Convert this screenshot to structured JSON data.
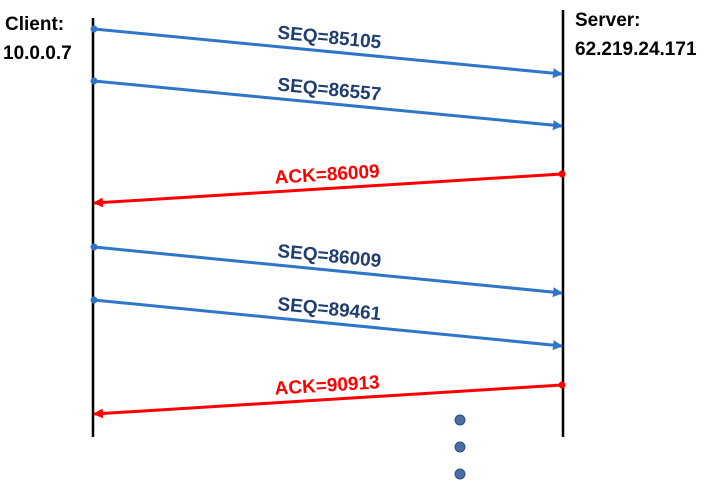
{
  "client": {
    "title": "Client:",
    "address": "10.0.0.7"
  },
  "server": {
    "title": "Server:",
    "address": "62.219.24.171"
  },
  "colors": {
    "data_segment": "#2F75C8",
    "data_label": "#1F3D6E",
    "ack": "#FF0000",
    "timeline": "#000000",
    "ellipsis_dot": "#4A6FA5"
  },
  "messages": [
    {
      "type": "seq",
      "direction": "client-to-server",
      "label": "SEQ=85105"
    },
    {
      "type": "seq",
      "direction": "client-to-server",
      "label": "SEQ=86557"
    },
    {
      "type": "ack",
      "direction": "server-to-client",
      "label": "ACK=86009"
    },
    {
      "type": "seq",
      "direction": "client-to-server",
      "label": "SEQ=86009"
    },
    {
      "type": "seq",
      "direction": "client-to-server",
      "label": "SEQ=89461"
    },
    {
      "type": "ack",
      "direction": "server-to-client",
      "label": "ACK=90913"
    }
  ],
  "continuation": {
    "dots": 3,
    "icon": "vertical-ellipsis-icon"
  }
}
